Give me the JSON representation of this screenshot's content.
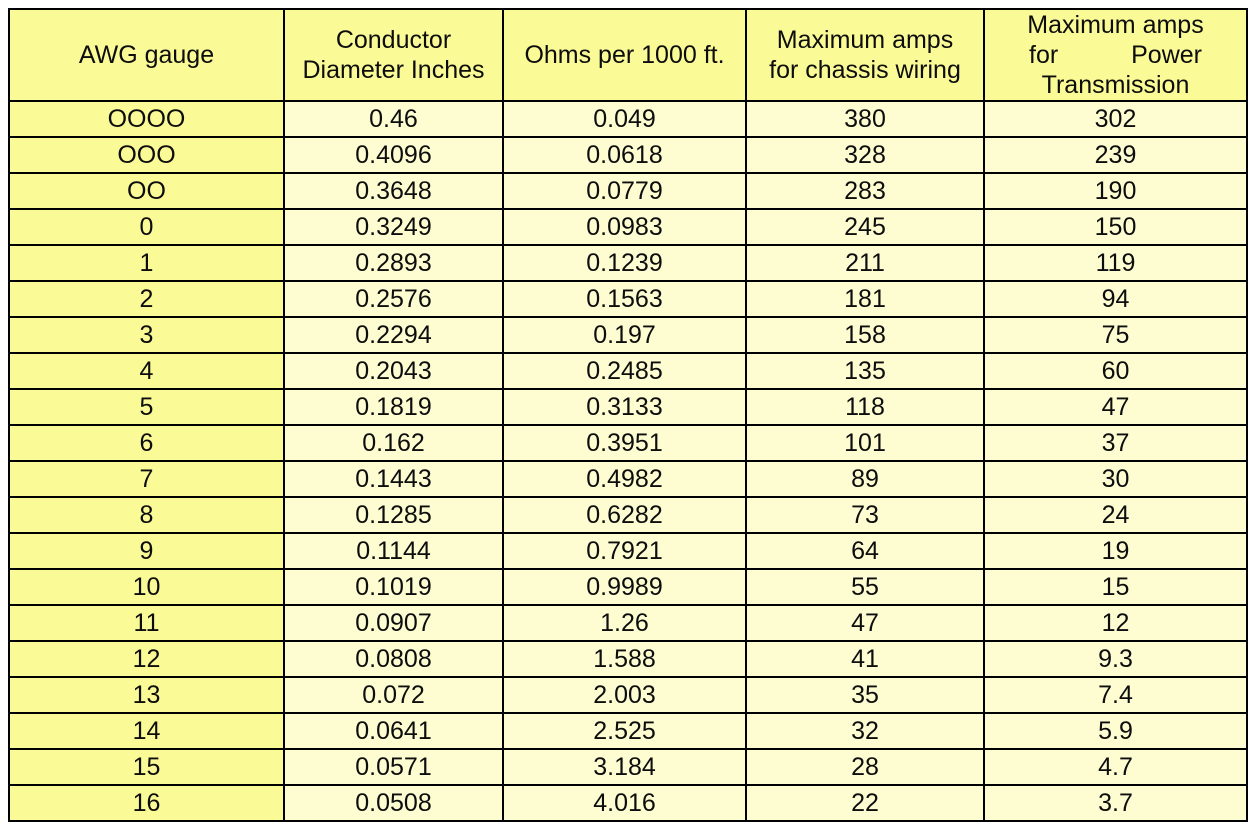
{
  "colors": {
    "header_background": "#fafa96",
    "gauge_column_background": "#fafa96",
    "cell_background": "#fdfdd1",
    "border": "#000000",
    "text": "#0d0d0d",
    "page_background": "#ffffff"
  },
  "header_display": [
    {
      "lines": [
        "AWG gauge"
      ]
    },
    {
      "lines": [
        "Conductor",
        "Diameter Inches"
      ]
    },
    {
      "lines": [
        "Ohms per 1000 ft."
      ]
    },
    {
      "lines": [
        "Maximum amps",
        "for chassis wiring"
      ]
    },
    {
      "lines": [
        "Maximum amps",
        "for Power",
        "Transmission"
      ],
      "spread_line": 1
    }
  ],
  "chart_data": {
    "type": "table",
    "columns": [
      "AWG gauge",
      "Conductor Diameter Inches",
      "Ohms per 1000 ft.",
      "Maximum amps for chassis wiring",
      "Maximum amps for Power Transmission"
    ],
    "rows": [
      [
        "OOOO",
        "0.46",
        "0.049",
        "380",
        "302"
      ],
      [
        "OOO",
        "0.4096",
        "0.0618",
        "328",
        "239"
      ],
      [
        "OO",
        "0.3648",
        "0.0779",
        "283",
        "190"
      ],
      [
        "0",
        "0.3249",
        "0.0983",
        "245",
        "150"
      ],
      [
        "1",
        "0.2893",
        "0.1239",
        "211",
        "119"
      ],
      [
        "2",
        "0.2576",
        "0.1563",
        "181",
        "94"
      ],
      [
        "3",
        "0.2294",
        "0.197",
        "158",
        "75"
      ],
      [
        "4",
        "0.2043",
        "0.2485",
        "135",
        "60"
      ],
      [
        "5",
        "0.1819",
        "0.3133",
        "118",
        "47"
      ],
      [
        "6",
        "0.162",
        "0.3951",
        "101",
        "37"
      ],
      [
        "7",
        "0.1443",
        "0.4982",
        "89",
        "30"
      ],
      [
        "8",
        "0.1285",
        "0.6282",
        "73",
        "24"
      ],
      [
        "9",
        "0.1144",
        "0.7921",
        "64",
        "19"
      ],
      [
        "10",
        "0.1019",
        "0.9989",
        "55",
        "15"
      ],
      [
        "11",
        "0.0907",
        "1.26",
        "47",
        "12"
      ],
      [
        "12",
        "0.0808",
        "1.588",
        "41",
        "9.3"
      ],
      [
        "13",
        "0.072",
        "2.003",
        "35",
        "7.4"
      ],
      [
        "14",
        "0.0641",
        "2.525",
        "32",
        "5.9"
      ],
      [
        "15",
        "0.0571",
        "3.184",
        "28",
        "4.7"
      ],
      [
        "16",
        "0.0508",
        "4.016",
        "22",
        "3.7"
      ]
    ]
  }
}
